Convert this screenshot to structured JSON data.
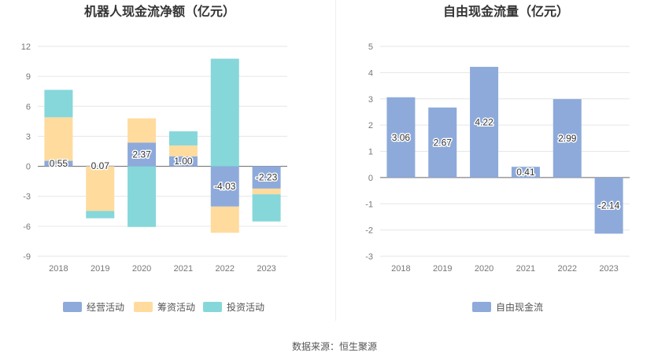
{
  "source": "数据来源：恒生聚源",
  "chart_data": [
    {
      "type": "bar",
      "stacked": true,
      "title": "机器人现金流净额（亿元）",
      "categories": [
        "2018",
        "2019",
        "2020",
        "2021",
        "2022",
        "2023"
      ],
      "ylim": [
        -9,
        12
      ],
      "yticks": [
        -9,
        -6,
        -3,
        0,
        3,
        6,
        9,
        12
      ],
      "grid": true,
      "legend_position": "bottom",
      "series": [
        {
          "name": "经营活动",
          "color": "#8eaadb",
          "values": [
            0.55,
            0.07,
            2.37,
            1.0,
            -4.03,
            -2.23
          ],
          "labels": [
            "0.55",
            "0.07",
            "2.37",
            "1.00",
            "-4.03",
            "-2.23"
          ]
        },
        {
          "name": "筹资活动",
          "color": "#ffdb9e",
          "values": [
            4.35,
            -4.47,
            2.43,
            1.08,
            -2.62,
            -0.57
          ]
        },
        {
          "name": "投资活动",
          "color": "#86d7da",
          "values": [
            2.75,
            -0.73,
            -6.07,
            1.42,
            10.77,
            -2.72
          ]
        }
      ]
    },
    {
      "type": "bar",
      "title": "自由现金流量（亿元）",
      "categories": [
        "2018",
        "2019",
        "2020",
        "2021",
        "2022",
        "2023"
      ],
      "ylim": [
        -3,
        5
      ],
      "yticks": [
        -3,
        -2,
        -1,
        0,
        1,
        2,
        3,
        4,
        5
      ],
      "grid": true,
      "legend_position": "bottom",
      "series": [
        {
          "name": "自由现金流",
          "color": "#8eaadb",
          "values": [
            3.06,
            2.67,
            4.22,
            0.41,
            2.99,
            -2.14
          ],
          "labels": [
            "3.06",
            "2.67",
            "4.22",
            "0.41",
            "2.99",
            "-2.14"
          ]
        }
      ]
    }
  ]
}
